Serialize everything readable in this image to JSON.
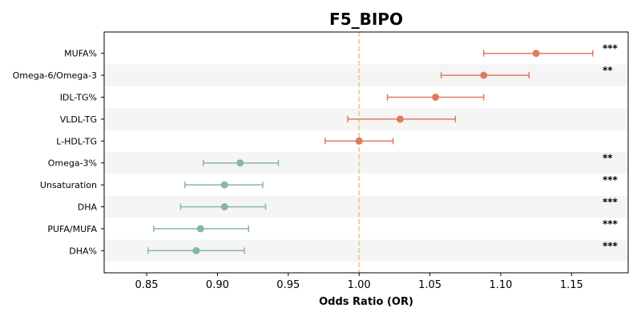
{
  "chart_data": {
    "type": "forest",
    "title": "F5_BIPO",
    "xlabel": "Odds Ratio (OR)",
    "xlim": [
      0.82,
      1.19
    ],
    "xticks": [
      0.85,
      0.9,
      0.95,
      1.0,
      1.05,
      1.1,
      1.15
    ],
    "xtick_labels": [
      "0.85",
      "0.90",
      "0.95",
      "1.00",
      "1.05",
      "1.10",
      "1.15"
    ],
    "reference_line": 1.0,
    "grid": false,
    "alternating_row_shading": true,
    "colors": {
      "risk": "#e07b5f",
      "protective": "#86b89e",
      "reference": "#f0c987",
      "stripe": "#f5f5f5"
    },
    "rows": [
      {
        "label": "MUFA%",
        "or": 1.125,
        "lo": 1.088,
        "hi": 1.165,
        "sig": "***",
        "group": "risk"
      },
      {
        "label": "Omega-6/Omega-3",
        "or": 1.088,
        "lo": 1.058,
        "hi": 1.12,
        "sig": "**",
        "group": "risk"
      },
      {
        "label": "IDL-TG%",
        "or": 1.054,
        "lo": 1.02,
        "hi": 1.088,
        "sig": "",
        "group": "risk"
      },
      {
        "label": "VLDL-TG",
        "or": 1.029,
        "lo": 0.992,
        "hi": 1.068,
        "sig": "",
        "group": "risk"
      },
      {
        "label": "L-HDL-TG",
        "or": 1.0,
        "lo": 0.976,
        "hi": 1.024,
        "sig": "",
        "group": "risk"
      },
      {
        "label": "Omega-3%",
        "or": 0.916,
        "lo": 0.89,
        "hi": 0.943,
        "sig": "**",
        "group": "protective"
      },
      {
        "label": "Unsaturation",
        "or": 0.905,
        "lo": 0.877,
        "hi": 0.932,
        "sig": "***",
        "group": "protective"
      },
      {
        "label": "DHA",
        "or": 0.905,
        "lo": 0.874,
        "hi": 0.934,
        "sig": "***",
        "group": "protective"
      },
      {
        "label": "PUFA/MUFA",
        "or": 0.888,
        "lo": 0.855,
        "hi": 0.922,
        "sig": "***",
        "group": "protective"
      },
      {
        "label": "DHA%",
        "or": 0.885,
        "lo": 0.851,
        "hi": 0.919,
        "sig": "***",
        "group": "protective"
      }
    ]
  }
}
